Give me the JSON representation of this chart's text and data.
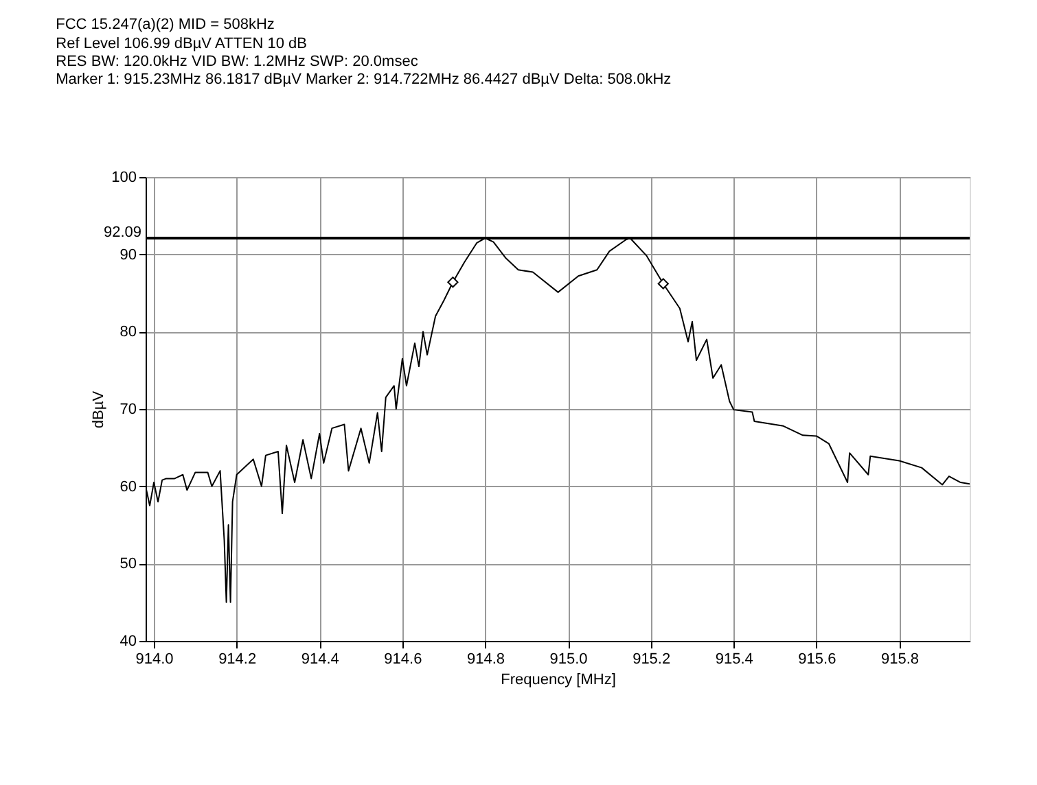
{
  "chart_data": {
    "type": "line",
    "title": "FCC 15.247(a)(2)  MID = 508kHz",
    "annotations": [
      "Ref Level 106.99 dBµV    ATTEN 10 dB",
      "RES BW: 120.0kHz  VID BW: 1.2MHz  SWP: 20.0msec",
      "Marker 1: 915.23MHz  86.1817 dBµV    Marker 2: 914.722MHz  86.4427 dBµV Delta: 508.0kHz"
    ],
    "xlabel": "Frequency [MHz]",
    "ylabel": "dBµV",
    "xlim": [
      913.98,
      915.97
    ],
    "ylim": [
      40,
      100
    ],
    "xticks": [
      {
        "value": 914.0,
        "label": "914.0"
      },
      914.2,
      914.4,
      914.6,
      914.8,
      {
        "value": 915.0,
        "label": "915.0"
      },
      915.2,
      915.4,
      915.6,
      915.8
    ],
    "yticks": [
      40,
      50,
      60,
      70,
      80,
      90,
      100
    ],
    "grid": true,
    "ref_lines": [
      {
        "axis": "y",
        "value": 92.09,
        "label": "92.09",
        "color": "#000000"
      }
    ],
    "series": [
      {
        "color": "#000000",
        "line_style": "solid",
        "x": [
          913.98,
          913.99,
          914.0,
          914.01,
          914.02,
          914.03,
          914.05,
          914.07,
          914.08,
          914.1,
          914.13,
          914.14,
          914.16,
          914.17,
          914.175,
          914.18,
          914.185,
          914.19,
          914.2,
          914.22,
          914.24,
          914.26,
          914.27,
          914.3,
          914.31,
          914.32,
          914.34,
          914.36,
          914.38,
          914.4,
          914.41,
          914.43,
          914.46,
          914.47,
          914.5,
          914.52,
          914.54,
          914.55,
          914.56,
          914.58,
          914.585,
          914.6,
          914.61,
          914.63,
          914.64,
          914.65,
          914.66,
          914.68,
          914.7,
          914.722,
          914.75,
          914.78,
          914.8,
          914.82,
          914.85,
          914.88,
          914.915,
          914.976,
          915.025,
          915.07,
          915.1,
          915.14,
          915.15,
          915.19,
          915.23,
          915.27,
          915.29,
          915.3,
          915.31,
          915.335,
          915.35,
          915.37,
          915.39,
          915.4,
          915.445,
          915.45,
          915.52,
          915.567,
          915.6,
          915.63,
          915.675,
          915.68,
          915.725,
          915.73,
          915.8,
          915.854,
          915.904,
          915.92,
          915.948,
          915.97
        ],
        "values": [
          60.0,
          57.5,
          60.5,
          58.0,
          60.8,
          61.0,
          61.0,
          61.5,
          59.5,
          61.8,
          61.8,
          60.0,
          62.0,
          53.0,
          45.0,
          55.0,
          45.0,
          58.0,
          61.5,
          62.5,
          63.5,
          60.0,
          64.0,
          64.5,
          56.5,
          65.3,
          60.5,
          66.0,
          61.0,
          66.8,
          63.0,
          67.5,
          68.0,
          62.0,
          67.5,
          63.0,
          69.5,
          64.5,
          71.5,
          73.0,
          70.0,
          76.5,
          73.0,
          78.5,
          75.5,
          80.0,
          77.0,
          82.0,
          84.0,
          86.4,
          89.0,
          91.5,
          92.1,
          91.6,
          89.5,
          88.0,
          87.7,
          85.1,
          87.2,
          88.0,
          90.4,
          91.9,
          92.1,
          89.8,
          86.2,
          83.0,
          78.7,
          81.3,
          76.3,
          79.0,
          74.0,
          75.7,
          71.0,
          69.9,
          69.6,
          68.4,
          67.8,
          66.6,
          66.5,
          65.5,
          60.5,
          64.3,
          61.5,
          63.9,
          63.3,
          62.4,
          60.2,
          61.3,
          60.5,
          60.3
        ]
      },
      {
        "type": "scatter",
        "marker": "diamond",
        "color": "#000000",
        "x": [
          914.722,
          915.23
        ],
        "values": [
          86.4,
          86.2
        ]
      }
    ]
  }
}
